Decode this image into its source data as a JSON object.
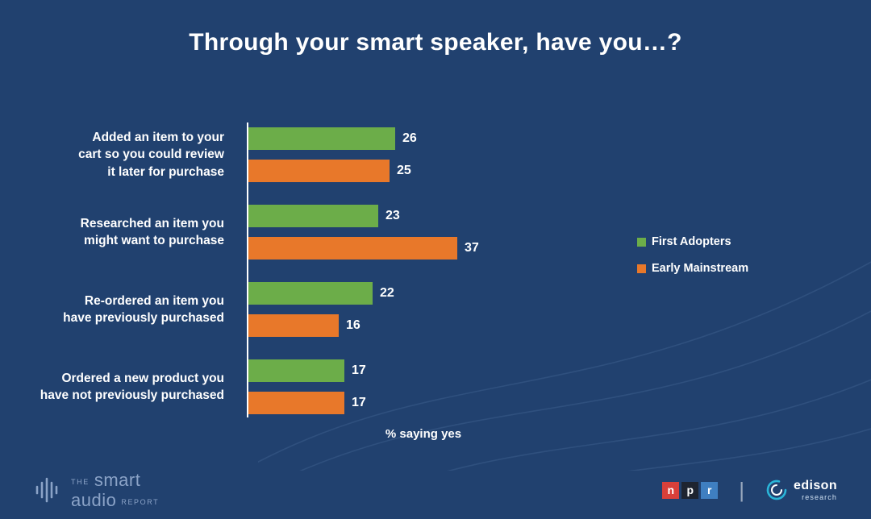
{
  "title": "Through your smart speaker, have you…?",
  "chart_data": {
    "type": "bar",
    "orientation": "horizontal",
    "title": "Through your smart speaker, have you…?",
    "categories": [
      "Added an item to your\ncart so you could review\nit later for purchase",
      "Researched an item you\nmight want to purchase",
      "Re-ordered an item you\nhave previously purchased",
      "Ordered a new product you\nhave not previously purchased"
    ],
    "series": [
      {
        "name": "First Adopters",
        "color": "#6cad49",
        "values": [
          26,
          23,
          22,
          17
        ]
      },
      {
        "name": "Early Mainstream",
        "color": "#e8782a",
        "values": [
          25,
          37,
          16,
          17
        ]
      }
    ],
    "xlabel": "% saying yes",
    "xlim": [
      0,
      40
    ],
    "value_labels": true,
    "legend_position": "right",
    "grid": false
  },
  "footer": {
    "brand": {
      "the": "THE",
      "smart": "smart",
      "audio": "audio",
      "report": "REPORT"
    },
    "npr": {
      "letters": [
        "n",
        "p",
        "r"
      ],
      "tile_colors": [
        "#d8403a",
        "#1e2430",
        "#3f7fc1"
      ]
    },
    "divider": "|",
    "edison": {
      "name": "edison",
      "sub": "research",
      "accent": "#2ab5d8"
    }
  },
  "colors": {
    "background": "#21416f",
    "bar_green": "#6cad49",
    "bar_orange": "#e8782a",
    "text": "#ffffff",
    "axis": "#ffffff"
  }
}
